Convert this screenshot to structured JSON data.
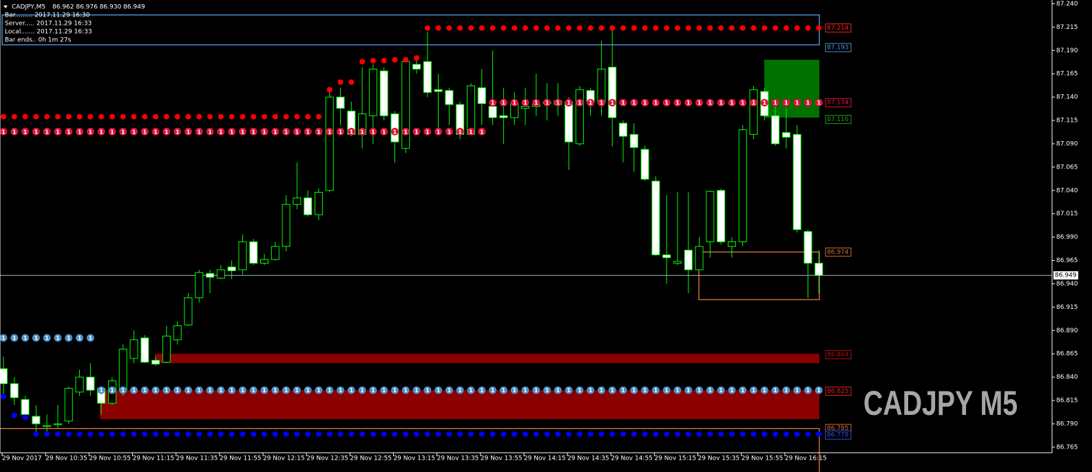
{
  "chart_data": {
    "type": "candlestick",
    "symbol": "CADJPY,M5",
    "quote": "86.962 86.976 86.930 86.949",
    "info": [
      "Bar......... 2017.11.29 16:30",
      "Server..... 2017.11.29 16:33",
      "Local....... 2017.11.29 16:33",
      "Bar ends.. 0h 1m 27s"
    ],
    "watermark": "CADJPY M5",
    "categories": [
      "29 Nov 2017",
      null,
      null,
      null,
      "29 Nov 10:35",
      null,
      null,
      null,
      "29 Nov 10:55",
      null,
      null,
      null,
      "29 Nov 11:15",
      null,
      null,
      null,
      "29 Nov 11:35",
      null,
      null,
      null,
      "29 Nov 11:55",
      null,
      null,
      null,
      "29 Nov 12:15",
      null,
      null,
      null,
      "29 Nov 12:35",
      null,
      null,
      null,
      "29 Nov 12:55",
      null,
      null,
      null,
      "29 Nov 13:15",
      null,
      null,
      null,
      "29 Nov 13:35",
      null,
      null,
      null,
      "29 Nov 13:55",
      null,
      null,
      null,
      "29 Nov 14:15",
      null,
      null,
      null,
      "29 Nov 14:35",
      null,
      null,
      null,
      "29 Nov 14:55",
      null,
      null,
      null,
      "29 Nov 15:15",
      null,
      null,
      null,
      "29 Nov 15:35",
      null,
      null,
      null,
      "29 Nov 15:55",
      null,
      null,
      null,
      "29 Nov 16:15",
      null,
      null,
      null
    ],
    "open": [
      86.849,
      86.833,
      86.816,
      86.798,
      86.787,
      86.789,
      86.793,
      86.824,
      86.84,
      86.828,
      86.812,
      86.826,
      86.86,
      86.882,
      86.858,
      86.856,
      86.88,
      86.896,
      86.925,
      86.951,
      86.946,
      86.958,
      86.955,
      86.985,
      86.962,
      86.966,
      86.98,
      87.025,
      87.032,
      87.014,
      87.04,
      87.14,
      87.125,
      87.1,
      87.12,
      87.168,
      87.122,
      87.085,
      87.175,
      87.178,
      87.148,
      87.147,
      87.132,
      87.1,
      87.15,
      87.13,
      87.12,
      87.118,
      87.128,
      87.13,
      87.133,
      87.132,
      87.135,
      87.09,
      87.147,
      87.135,
      87.172,
      87.112,
      87.1,
      87.084,
      87.05,
      86.971,
      86.962,
      86.976,
      86.955,
      86.985,
      87.04,
      86.98,
      86.985,
      87.1,
      87.146,
      87.12,
      87.102,
      87.1,
      86.996,
      86.962
    ],
    "high": [
      86.862,
      86.84,
      86.82,
      86.81,
      86.8,
      86.81,
      86.83,
      86.848,
      86.855,
      86.83,
      86.84,
      86.875,
      86.89,
      86.885,
      86.862,
      86.895,
      86.9,
      86.93,
      86.955,
      86.955,
      86.96,
      86.965,
      86.993,
      86.988,
      86.972,
      86.985,
      87.035,
      87.07,
      87.04,
      87.042,
      87.146,
      87.15,
      87.135,
      87.172,
      87.175,
      87.172,
      87.125,
      87.18,
      87.18,
      87.21,
      87.165,
      87.15,
      87.135,
      87.155,
      87.17,
      87.19,
      87.15,
      87.145,
      87.15,
      87.165,
      87.155,
      87.155,
      87.14,
      87.152,
      87.15,
      87.2,
      87.214,
      87.115,
      87.112,
      87.088,
      87.055,
      87.035,
      87.038,
      87.038,
      86.99,
      87.04,
      87.042,
      86.99,
      87.11,
      87.152,
      87.15,
      87.132,
      87.128,
      87.11,
      86.998,
      86.976
    ],
    "low": [
      86.82,
      86.81,
      86.795,
      86.78,
      86.78,
      86.785,
      86.79,
      86.82,
      86.82,
      86.8,
      86.81,
      86.82,
      86.855,
      86.855,
      86.852,
      86.855,
      86.875,
      86.895,
      86.92,
      86.93,
      86.945,
      86.945,
      86.95,
      86.96,
      86.96,
      86.965,
      86.975,
      87.02,
      87.012,
      87.008,
      87.038,
      87.11,
      87.098,
      87.085,
      87.09,
      87.115,
      87.07,
      87.08,
      87.165,
      87.14,
      87.1,
      87.11,
      87.095,
      87.1,
      87.11,
      87.11,
      87.09,
      87.11,
      87.11,
      87.12,
      87.115,
      87.12,
      87.062,
      87.088,
      87.12,
      87.12,
      87.087,
      87.07,
      87.06,
      87.05,
      86.97,
      86.94,
      86.96,
      86.93,
      86.955,
      86.968,
      86.982,
      86.968,
      86.98,
      87.095,
      87.115,
      87.088,
      87.085,
      86.995,
      86.925,
      86.93
    ],
    "close": [
      86.833,
      86.818,
      86.8,
      86.79,
      86.788,
      86.79,
      86.828,
      86.84,
      86.826,
      86.812,
      86.836,
      86.87,
      86.88,
      86.856,
      86.854,
      86.884,
      86.895,
      86.925,
      86.952,
      86.947,
      86.955,
      86.954,
      86.985,
      86.962,
      86.966,
      86.98,
      87.025,
      87.032,
      87.014,
      87.038,
      87.14,
      87.128,
      87.1,
      87.122,
      87.17,
      87.12,
      87.092,
      87.178,
      87.17,
      87.145,
      87.146,
      87.132,
      87.1,
      87.152,
      87.133,
      87.118,
      87.118,
      87.133,
      87.13,
      87.132,
      87.135,
      87.136,
      87.092,
      87.148,
      87.135,
      87.17,
      87.118,
      87.098,
      87.086,
      87.052,
      86.971,
      86.968,
      86.964,
      86.955,
      86.98,
      87.039,
      86.985,
      86.985,
      87.105,
      87.148,
      87.12,
      87.09,
      87.097,
      86.998,
      86.962,
      86.949
    ],
    "ylim": [
      86.759,
      87.244
    ],
    "yticks": [
      {
        "value": 87.24,
        "label": "87.240"
      },
      87.215,
      {
        "value": 87.19,
        "label": "87.190"
      },
      87.165,
      {
        "value": 87.14,
        "label": "87.140"
      },
      87.115,
      {
        "value": 87.09,
        "label": "87.090"
      },
      87.065,
      {
        "value": 87.04,
        "label": "87.040"
      },
      87.015,
      {
        "value": 86.99,
        "label": "86.990"
      },
      86.965,
      {
        "value": 86.94,
        "label": "86.940"
      },
      86.915,
      {
        "value": 86.89,
        "label": "86.890"
      },
      86.865,
      {
        "value": 86.84,
        "label": "86.840"
      },
      86.815,
      {
        "value": 86.79,
        "label": "86.790"
      },
      86.765
    ],
    "colors": {
      "up": "#000000",
      "down": "#ffffff",
      "wick": "#00ff00"
    },
    "current_price": 86.949,
    "zones": [
      {
        "top": 87.228,
        "bottom": 87.196,
        "color": "#4a90d0",
        "filled": false
      },
      {
        "top": 87.18,
        "bottom": 87.118,
        "color": "#007000",
        "filled": true
      },
      {
        "top": 86.974,
        "bottom": 86.923,
        "color": "#c86f32",
        "filled": false
      },
      {
        "top": 86.865,
        "bottom": 86.855,
        "color": "#8b0000",
        "filled": true
      },
      {
        "top": 86.826,
        "bottom": 86.795,
        "color": "#8b0000",
        "filled": true
      }
    ],
    "lines": [
      {
        "value": 86.785,
        "color": "#c86f32"
      }
    ],
    "dot_rows": [
      {
        "value": 87.214,
        "color": "#ff0000"
      },
      {
        "value": 87.134,
        "color": "#dc143c",
        "label": "1"
      },
      {
        "value": 87.119,
        "color": "#ff0000"
      },
      {
        "value": 87.103,
        "color": "#dc143c",
        "label": "1"
      },
      {
        "value": 86.882,
        "color": "#4a90c8",
        "label": "1"
      },
      {
        "value": 86.826,
        "color": "#4a90c8",
        "label": "1"
      },
      {
        "value": 86.779,
        "color": "#0000ff"
      }
    ],
    "markers": [
      {
        "color": "#ff0000",
        "values": [
          null,
          null,
          null,
          null,
          null,
          null,
          null,
          null,
          null,
          null,
          null,
          null,
          null,
          null,
          null,
          null,
          null,
          null,
          null,
          null,
          null,
          null,
          null,
          null,
          null,
          null,
          null,
          null,
          null,
          null,
          87.148,
          87.156,
          87.156,
          87.178,
          87.179,
          87.179,
          87.18,
          87.18,
          87.182,
          null,
          null,
          null,
          null,
          null,
          null,
          null,
          null,
          null,
          null,
          null,
          null,
          null,
          null,
          null,
          null,
          null,
          null,
          null,
          null,
          null,
          null,
          null,
          null,
          null,
          null,
          null,
          null,
          null,
          null,
          null,
          null,
          null,
          null,
          null,
          null,
          null
        ]
      },
      {
        "color": "#0000ff",
        "values": [
          86.819,
          86.799,
          86.797,
          null,
          null,
          null,
          null,
          null,
          null,
          null,
          null,
          null,
          null,
          null,
          null,
          null,
          null,
          null,
          null,
          null,
          null,
          null,
          null,
          null,
          null,
          null,
          null,
          null,
          null,
          null,
          null,
          null,
          null,
          null,
          null,
          null,
          null,
          null,
          null,
          null,
          null,
          null,
          null,
          null,
          null,
          null,
          null,
          null,
          null,
          null,
          null,
          null,
          null,
          null,
          null,
          null,
          null,
          null,
          null,
          null,
          null,
          null,
          null,
          null,
          null,
          null,
          null,
          null,
          null,
          null,
          null,
          null,
          null,
          null,
          null,
          null
        ]
      }
    ],
    "price_labels": [
      {
        "value": 87.214,
        "color": "#ff2020"
      },
      {
        "value": 87.193,
        "color": "#4a90d0"
      },
      {
        "value": 87.134,
        "color": "#dc143c"
      },
      {
        "value": 87.116,
        "color": "#1e9e1e"
      },
      {
        "value": 86.974,
        "color": "#c86f32"
      },
      {
        "value": 86.864,
        "color": "#b01010"
      },
      {
        "value": 86.825,
        "color": "#e02020"
      },
      {
        "value": 86.785,
        "color": "#c86f32"
      },
      {
        "value": 86.778,
        "color": "#3050e0"
      }
    ]
  }
}
